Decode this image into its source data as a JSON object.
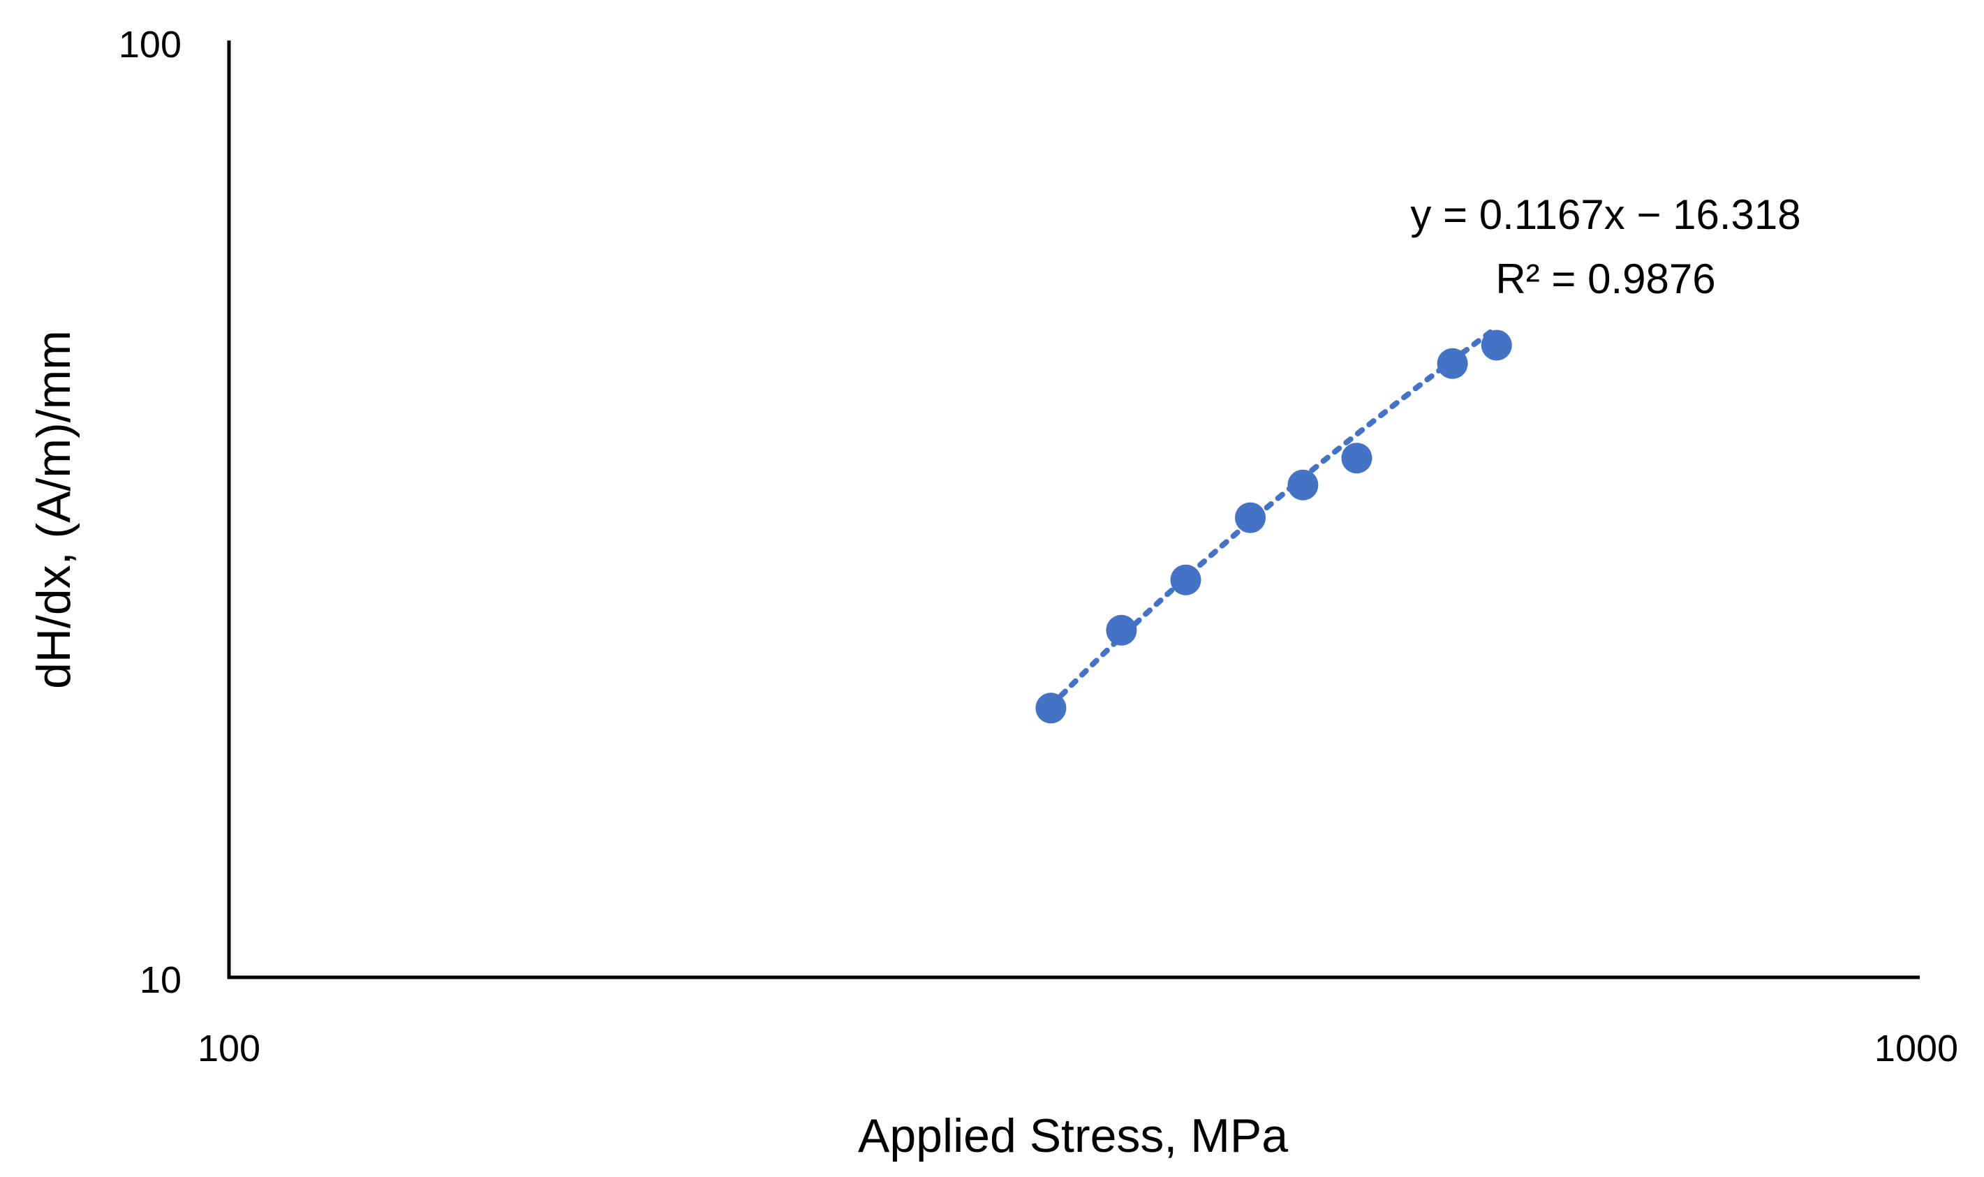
{
  "chart_data": {
    "type": "scatter",
    "xlabel": "Applied Stress, MPa",
    "ylabel": "dH/dx, (A/m)/mm",
    "x_scale": "log",
    "y_scale": "log",
    "xlim": [
      100,
      1000
    ],
    "ylim": [
      10,
      100
    ],
    "x_ticks": [
      "100",
      "1000"
    ],
    "y_ticks": [
      "10",
      "100"
    ],
    "grid": false,
    "series": [
      {
        "color": "#4472C4",
        "marker": "circle",
        "points": [
          {
            "x": 307,
            "y": 19.4
          },
          {
            "x": 338,
            "y": 23.5
          },
          {
            "x": 369,
            "y": 26.6
          },
          {
            "x": 403,
            "y": 31.0
          },
          {
            "x": 433,
            "y": 33.6
          },
          {
            "x": 466,
            "y": 35.9
          },
          {
            "x": 531,
            "y": 45.3
          },
          {
            "x": 564,
            "y": 47.4
          }
        ]
      }
    ],
    "trendline": {
      "style": "dotted",
      "color": "#4472C4",
      "slope": 0.1167,
      "intercept": -16.318,
      "x_range": [
        307,
        564
      ],
      "equation_label": "y = 0.1167x − 16.318",
      "r2_label": "R² = 0.9876"
    }
  }
}
